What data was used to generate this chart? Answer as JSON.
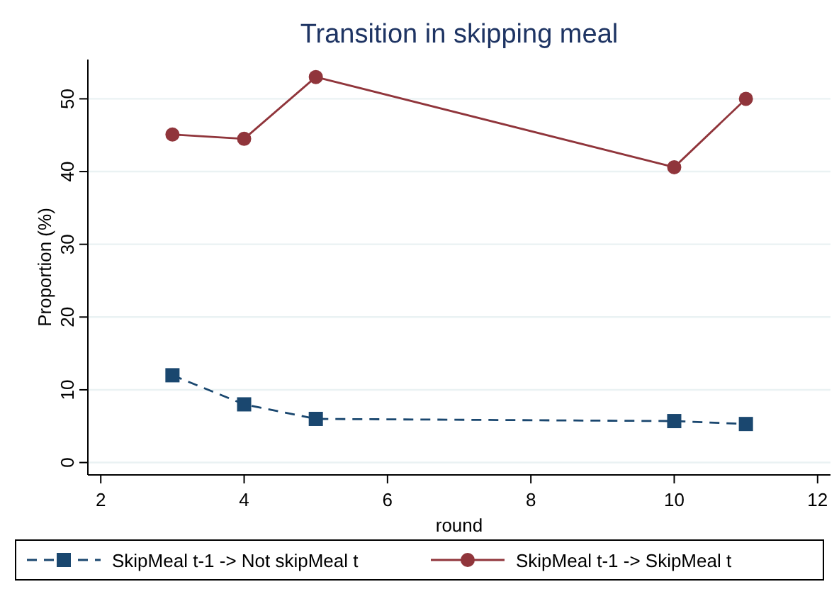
{
  "chart_data": {
    "type": "line",
    "title": "Transition in skipping meal",
    "xlabel": "round",
    "ylabel": "Proportion (%)",
    "x": [
      3,
      4,
      5,
      10,
      11
    ],
    "series": [
      {
        "name": "SkipMeal t-1 -> Not skipMeal t",
        "color": "#1a476f",
        "values": [
          12,
          8,
          6,
          5.7,
          5.3
        ],
        "marker": "square",
        "line_style": "dashed"
      },
      {
        "name": "SkipMeal t-1 -> SkipMeal t",
        "color": "#90353b",
        "values": [
          45.1,
          44.5,
          53,
          40.6,
          50
        ],
        "marker": "circle",
        "line_style": "solid"
      }
    ],
    "xlim": [
      1.82,
      12.18
    ],
    "xticks": [
      2,
      4,
      6,
      8,
      10,
      12
    ],
    "ylim": [
      -1.7,
      55.4
    ],
    "yticks": [
      0,
      10,
      20,
      30,
      40,
      50
    ],
    "grid": "y",
    "legend": "bottom"
  }
}
